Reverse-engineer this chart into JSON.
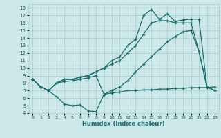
{
  "xlabel": "Humidex (Indice chaleur)",
  "ylabel": "",
  "bg_color": "#cce8e8",
  "grid_color": "#aacccc",
  "line_color": "#1a6b6b",
  "ylim": [
    4,
    18.5
  ],
  "xlim": [
    -0.5,
    23.5
  ],
  "yticks": [
    4,
    5,
    6,
    7,
    8,
    9,
    10,
    11,
    12,
    13,
    14,
    15,
    16,
    17,
    18
  ],
  "xticks": [
    0,
    1,
    2,
    3,
    4,
    5,
    6,
    7,
    8,
    9,
    10,
    11,
    12,
    13,
    14,
    15,
    16,
    17,
    18,
    19,
    20,
    21,
    22,
    23
  ],
  "line1_x": [
    0,
    1,
    2,
    3,
    4,
    5,
    6,
    7,
    8,
    9,
    10,
    11,
    12,
    13,
    14,
    15,
    16,
    17,
    18,
    19,
    20,
    21,
    22,
    23
  ],
  "line1_y": [
    8.5,
    7.5,
    7.0,
    6.2,
    5.2,
    5.0,
    5.1,
    4.3,
    4.2,
    6.5,
    7.0,
    7.5,
    8.3,
    9.5,
    10.5,
    11.5,
    12.5,
    13.5,
    14.2,
    14.8,
    15.0,
    12.2,
    7.5,
    7.0
  ],
  "line2_x": [
    0,
    1,
    2,
    3,
    4,
    5,
    6,
    7,
    8,
    9,
    10,
    11,
    12,
    13,
    14,
    15,
    16,
    17,
    18,
    19,
    20,
    21,
    22,
    23
  ],
  "line2_y": [
    8.5,
    7.5,
    7.0,
    8.0,
    8.5,
    8.5,
    8.8,
    9.0,
    9.5,
    10.0,
    11.0,
    11.5,
    13.0,
    13.8,
    17.0,
    17.8,
    16.5,
    17.2,
    16.2,
    16.4,
    16.5,
    16.5,
    7.5,
    7.0
  ],
  "line3_x": [
    0,
    1,
    2,
    3,
    4,
    5,
    6,
    7,
    8,
    9,
    10,
    11,
    12,
    13,
    14,
    15,
    16,
    17,
    18,
    19,
    20,
    21,
    22,
    23
  ],
  "line3_y": [
    8.5,
    7.5,
    7.0,
    8.0,
    8.5,
    8.5,
    8.8,
    9.0,
    9.5,
    10.0,
    10.5,
    11.0,
    12.0,
    13.0,
    14.5,
    16.0,
    16.3,
    16.3,
    16.0,
    16.0,
    16.0,
    12.2,
    7.5,
    7.0
  ],
  "line4_x": [
    0,
    1,
    2,
    3,
    4,
    5,
    6,
    7,
    8,
    9,
    10,
    11,
    12,
    13,
    14,
    15,
    16,
    17,
    18,
    19,
    20,
    21,
    22,
    23
  ],
  "line4_y": [
    8.5,
    7.5,
    7.0,
    8.0,
    8.2,
    8.3,
    8.5,
    8.7,
    9.0,
    6.5,
    6.7,
    6.8,
    7.0,
    7.0,
    7.1,
    7.1,
    7.2,
    7.2,
    7.3,
    7.3,
    7.4,
    7.4,
    7.4,
    7.5
  ]
}
